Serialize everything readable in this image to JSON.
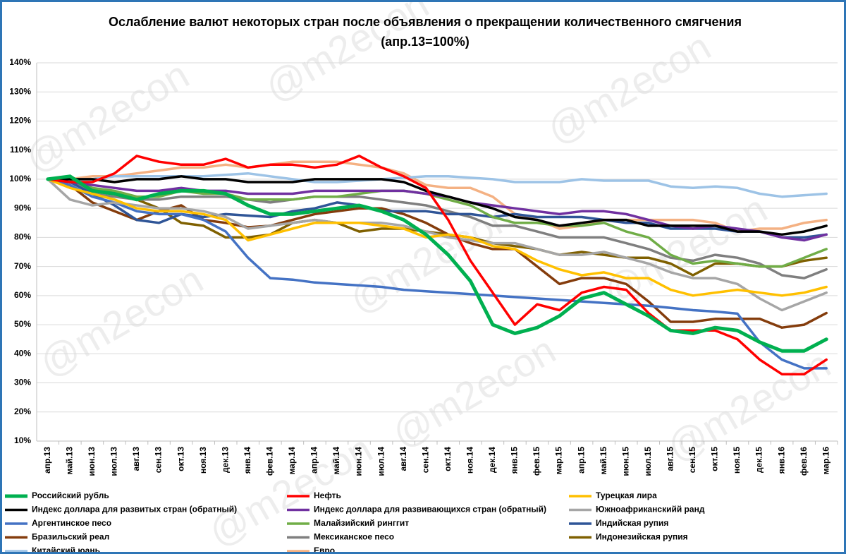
{
  "chart_data": {
    "type": "line",
    "title": "Ослабление валют некоторых стран после объявления о прекращении количественного смягчения  (апр.13=100%)",
    "watermark": "@m2econ",
    "categories": [
      "апр.13",
      "май.13",
      "июн.13",
      "июл.13",
      "авг.13",
      "сен.13",
      "окт.13",
      "ноя.13",
      "дек.13",
      "янв.14",
      "фев.14",
      "мар.14",
      "апр.14",
      "май.14",
      "июн.14",
      "июл.14",
      "авг.14",
      "сен.14",
      "окт.14",
      "ноя.14",
      "дек.14",
      "янв.15",
      "фев.15",
      "мар.15",
      "апр.15",
      "май.15",
      "июн.15",
      "июл.15",
      "авг.15",
      "сен.15",
      "окт.15",
      "ноя.15",
      "дек.15",
      "янв.16",
      "фев.16",
      "мар.16"
    ],
    "ylim": [
      10,
      140
    ],
    "yticks": [
      {
        "value": 10,
        "label": "10%"
      },
      {
        "value": 20,
        "label": "20%"
      },
      {
        "value": 30,
        "label": "30%"
      },
      {
        "value": 40,
        "label": "40%"
      },
      {
        "value": 50,
        "label": "50%"
      },
      {
        "value": 60,
        "label": "60%"
      },
      {
        "value": 70,
        "label": "70%"
      },
      {
        "value": 80,
        "label": "80%"
      },
      {
        "value": 90,
        "label": "90%"
      },
      {
        "value": 100,
        "label": "100%"
      },
      {
        "value": 110,
        "label": "110%"
      },
      {
        "value": 120,
        "label": "120%"
      },
      {
        "value": 130,
        "label": "130%"
      },
      {
        "value": 140,
        "label": "140%"
      }
    ],
    "grid": true,
    "series": [
      {
        "name": "Российский рубль",
        "color": "#00b050",
        "values": [
          100,
          101,
          96,
          95,
          93,
          95,
          96,
          96,
          95,
          91,
          88,
          88,
          89,
          90,
          91,
          89,
          86,
          81,
          74,
          65,
          50,
          47,
          49,
          53,
          59,
          61,
          57,
          53,
          48,
          47,
          49,
          48,
          44,
          41,
          41,
          45
        ]
      },
      {
        "name": "Нефть",
        "color": "#ff0000",
        "values": [
          100,
          99,
          99,
          102,
          108,
          106,
          105,
          105,
          107,
          104,
          105,
          105,
          104,
          105,
          108,
          104,
          101,
          97,
          86,
          72,
          61,
          50,
          57,
          55,
          61,
          63,
          62,
          54,
          48,
          48,
          48,
          45,
          38,
          33,
          33,
          38
        ]
      },
      {
        "name": "Турецкая лира",
        "color": "#ffc000",
        "values": [
          100,
          97,
          95,
          93,
          90,
          89,
          89,
          88,
          86,
          79,
          81,
          83,
          85,
          85,
          85,
          84,
          83,
          80,
          81,
          80,
          77,
          76,
          72,
          69,
          67,
          68,
          66,
          66,
          62,
          60,
          61,
          62,
          61,
          60,
          61,
          63
        ]
      },
      {
        "name": "Индекс доллара для развитых стран (обратный)",
        "color": "#000000",
        "values": [
          100,
          100,
          100,
          99,
          100,
          100,
          101,
          100,
          100,
          99,
          99,
          99,
          100,
          100,
          100,
          100,
          99,
          96,
          94,
          92,
          90,
          87,
          86,
          84,
          85,
          86,
          86,
          84,
          84,
          84,
          84,
          82,
          82,
          81,
          82,
          84
        ]
      },
      {
        "name": "Индекс доллара для развивающихся стран (обратный)",
        "color": "#7030a0",
        "values": [
          100,
          99,
          98,
          97,
          96,
          96,
          97,
          96,
          96,
          95,
          95,
          95,
          96,
          96,
          96,
          96,
          96,
          95,
          94,
          92,
          91,
          90,
          89,
          88,
          89,
          89,
          88,
          86,
          84,
          83,
          84,
          83,
          82,
          80,
          79,
          81
        ]
      },
      {
        "name": "Южноафриканскийй ранд",
        "color": "#a6a6a6",
        "values": [
          100,
          93,
          91,
          92,
          91,
          90,
          90,
          89,
          87,
          83,
          84,
          85,
          86,
          85,
          85,
          85,
          84,
          82,
          80,
          79,
          78,
          78,
          76,
          74,
          74,
          75,
          73,
          71,
          68,
          66,
          66,
          64,
          59,
          55,
          58,
          61
        ]
      },
      {
        "name": "Аргентинское песо",
        "color": "#4472c4",
        "values": [
          100,
          98,
          94,
          92,
          89,
          88,
          88,
          86,
          82,
          73,
          66,
          65.5,
          64.5,
          64,
          63.5,
          63,
          62,
          61.5,
          61,
          60.5,
          60,
          59.5,
          59,
          58.5,
          58,
          57.5,
          57,
          56.5,
          55.8,
          55,
          54.5,
          53.8,
          44,
          38,
          35,
          35
        ]
      },
      {
        "name": "Малайзийский ринггит",
        "color": "#70ad47",
        "values": [
          100,
          100,
          97,
          96,
          94,
          94,
          96,
          95,
          95,
          93,
          93,
          93,
          94,
          94,
          95,
          96,
          96,
          95,
          93,
          91,
          87,
          85,
          85,
          84,
          84,
          85,
          82,
          80,
          74,
          71,
          72,
          71,
          70,
          70,
          73,
          76
        ]
      },
      {
        "name": "Индийская рупия",
        "color": "#2f5597",
        "values": [
          100,
          99,
          95,
          91,
          86,
          85,
          88,
          87,
          88,
          87.5,
          87,
          89,
          90,
          92,
          91,
          89,
          89,
          89,
          88,
          88,
          87,
          88,
          87,
          87,
          87,
          86,
          85,
          85,
          83,
          83,
          83,
          82,
          82,
          80,
          80,
          81
        ]
      },
      {
        "name": "Бразильский реал",
        "color": "#843c0c",
        "values": [
          100,
          98,
          92,
          89,
          86,
          89,
          91,
          86,
          85,
          83.5,
          84,
          86,
          88,
          89,
          90,
          90,
          88,
          85,
          81,
          78,
          76,
          76,
          70,
          64,
          66,
          66,
          64,
          58,
          51,
          51,
          52,
          52,
          52,
          49,
          50,
          54
        ]
      },
      {
        "name": "Мексиканское песо",
        "color": "#7f7f7f",
        "values": [
          100,
          100,
          95,
          94,
          93,
          93,
          94,
          94,
          94,
          93,
          92,
          93,
          94,
          94,
          94,
          93,
          92,
          91,
          89,
          87,
          84,
          84,
          82,
          80,
          80,
          80,
          78,
          76,
          73,
          72,
          74,
          73,
          71,
          67,
          66,
          69
        ]
      },
      {
        "name": "Индонезийская рупия",
        "color": "#7f6000",
        "values": [
          100,
          99,
          97,
          95,
          93,
          90,
          85,
          84,
          80,
          80,
          81,
          85,
          86,
          85,
          82,
          83,
          83,
          82,
          81,
          80,
          78,
          77,
          76,
          74,
          75,
          74,
          73,
          73,
          71,
          67,
          71,
          71,
          70,
          70,
          72,
          73
        ]
      },
      {
        "name": "Китайский юань",
        "color": "#9dc3e6",
        "values": [
          100,
          100,
          100,
          101,
          101,
          101,
          101,
          101,
          101.5,
          102,
          101,
          100,
          99,
          99,
          99.5,
          100,
          100.5,
          101,
          101,
          100.5,
          100,
          99,
          99,
          99,
          100,
          99.5,
          99.5,
          99.5,
          97.5,
          97,
          97.5,
          97,
          95,
          94,
          94.5,
          95
        ]
      },
      {
        "name": "Евро",
        "color": "#f4b183",
        "values": [
          100,
          100,
          101,
          101,
          102,
          103,
          104,
          104,
          105,
          104,
          105,
          106,
          106,
          106,
          105,
          104,
          102,
          98,
          97,
          97,
          94,
          88,
          86,
          83,
          84,
          86,
          86,
          86,
          86,
          86,
          85,
          82,
          83,
          83,
          85,
          86
        ]
      }
    ]
  }
}
